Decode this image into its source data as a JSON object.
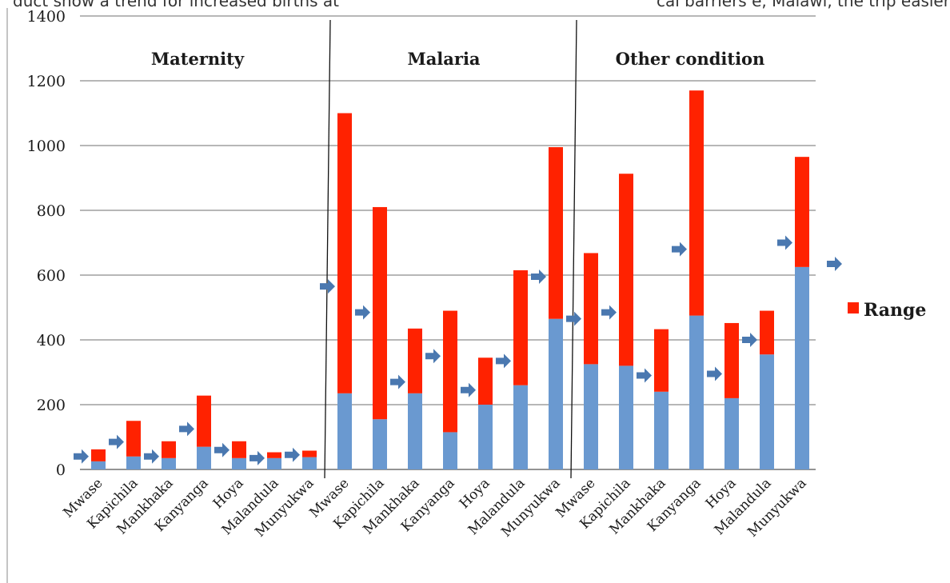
{
  "page_text": {
    "left": "duct show a trend for increased births at",
    "right": "cal barriers e, Malawi, the trip easier and"
  },
  "chart_data": {
    "type": "bar",
    "stacked": true,
    "title": "",
    "xlabel": "",
    "ylabel": "",
    "ylim": [
      0,
      1400
    ],
    "yticks": [
      0,
      200,
      400,
      600,
      800,
      1000,
      1200,
      1400
    ],
    "grid": true,
    "legend": {
      "position": "right",
      "entries": [
        "Range"
      ]
    },
    "groups": [
      {
        "name": "Maternity",
        "categories": [
          "Mwase",
          "Kapichila",
          "Mankhaka",
          "Kanyanga",
          "Hoya",
          "Malandula",
          "Munyukwa"
        ],
        "base": [
          25,
          40,
          35,
          70,
          35,
          35,
          38
        ],
        "range": [
          37,
          110,
          52,
          158,
          52,
          18,
          20
        ],
        "marker": [
          40,
          85,
          40,
          125,
          60,
          35,
          45
        ]
      },
      {
        "name": "Malaria",
        "categories": [
          "Mwase",
          "Kapichila",
          "Mankhaka",
          "Kanyanga",
          "Hoya",
          "Malandula",
          "Munyukwa"
        ],
        "base": [
          235,
          155,
          235,
          115,
          200,
          260,
          465
        ],
        "range": [
          865,
          655,
          200,
          375,
          145,
          355,
          530
        ],
        "marker": [
          565,
          485,
          270,
          350,
          245,
          335,
          595
        ]
      },
      {
        "name": "Other condition",
        "categories": [
          "Mwase",
          "Kapichila",
          "Mankhaka",
          "Kanyanga",
          "Hoya",
          "Malandula",
          "Munyukwa"
        ],
        "base": [
          325,
          320,
          240,
          475,
          220,
          355,
          625
        ],
        "range": [
          343,
          593,
          193,
          695,
          232,
          135,
          340
        ],
        "marker": [
          465,
          485,
          290,
          680,
          295,
          400,
          700
        ]
      }
    ],
    "colors": {
      "base": "#6a99d0",
      "range": "#ff2200",
      "marker": "#4a78b0",
      "grid": "#8c8c8c"
    }
  }
}
